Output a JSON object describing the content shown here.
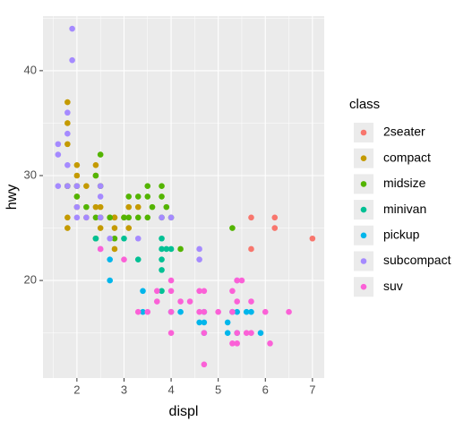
{
  "chart_data": {
    "type": "scatter",
    "x_label": "displ",
    "y_label": "hwy",
    "legend_title": "class",
    "xlim": [
      1.28,
      7.25
    ],
    "ylim": [
      10.7,
      45.2
    ],
    "xticks": [
      2,
      3,
      4,
      5,
      6,
      7
    ],
    "yticks": [
      20,
      30,
      40
    ],
    "grid": true,
    "legend": "right",
    "series": [
      {
        "name": "2seater",
        "color": "#F8766D",
        "x": [
          5.7,
          5.7,
          6.2,
          6.2,
          7.0
        ],
        "values": [
          26,
          23,
          26,
          25,
          24
        ]
      },
      {
        "name": "compact",
        "color": "#C49A00",
        "x": [
          1.8,
          1.8,
          2.0,
          2.0,
          2.8,
          2.8,
          3.1,
          1.8,
          1.8,
          2.0,
          2.0,
          2.8,
          3.1,
          2.2,
          2.4,
          3.0,
          3.3,
          1.8,
          1.8,
          1.8,
          2.4,
          2.5,
          2.5,
          2.2,
          2.4,
          2.5,
          2.7,
          2.8,
          2.0,
          2.5
        ],
        "values": [
          29,
          29,
          31,
          30,
          26,
          26,
          27,
          26,
          25,
          28,
          27,
          25,
          25,
          26,
          27,
          26,
          27,
          37,
          35,
          33,
          31,
          29,
          27,
          29,
          30,
          26,
          26,
          23,
          29,
          25
        ]
      },
      {
        "name": "midsize",
        "color": "#53B400",
        "x": [
          2.5,
          2.4,
          2.5,
          3.0,
          3.3,
          3.5,
          3.8,
          3.6,
          3.5,
          3.1,
          3.8,
          3.9,
          4.0,
          3.3,
          2.4,
          2.2,
          1.8,
          2.0,
          2.0,
          2.8,
          2.7,
          3.5,
          3.8,
          4.2,
          5.3,
          3.1,
          2.5,
          2.4
        ],
        "values": [
          32,
          30,
          29,
          26,
          28,
          29,
          26,
          27,
          26,
          26,
          29,
          27,
          26,
          26,
          26,
          27,
          29,
          28,
          29,
          24,
          26,
          28,
          28,
          23,
          25,
          28,
          26,
          24
        ]
      },
      {
        "name": "minivan",
        "color": "#00C094",
        "x": [
          2.4,
          3.0,
          3.3,
          3.8,
          3.8,
          3.8,
          3.8,
          4.0,
          3.8,
          3.9
        ],
        "values": [
          24,
          24,
          22,
          22,
          21,
          23,
          19,
          23,
          24,
          23
        ]
      },
      {
        "name": "pickup",
        "color": "#00B6EB",
        "x": [
          2.7,
          2.7,
          3.4,
          3.4,
          4.0,
          4.2,
          4.7,
          4.7,
          5.2,
          5.2,
          5.7,
          5.9,
          5.4,
          5.4,
          4.6,
          5.3,
          4.7,
          5.6
        ],
        "values": [
          20,
          22,
          17,
          19,
          17,
          17,
          16,
          17,
          16,
          15,
          17,
          15,
          17,
          15,
          16,
          17,
          15,
          17
        ]
      },
      {
        "name": "subcompact",
        "color": "#A58AFF",
        "x": [
          1.9,
          1.9,
          1.8,
          1.8,
          1.6,
          1.6,
          1.6,
          1.8,
          2.0,
          2.0,
          2.2,
          2.5,
          2.5,
          2.5,
          2.7,
          2.5,
          3.8,
          4.0,
          4.6,
          4.6,
          5.4,
          3.3,
          2.0,
          1.8
        ],
        "values": [
          44,
          41,
          36,
          34,
          33,
          32,
          29,
          29,
          27,
          26,
          26,
          26,
          28,
          29,
          24,
          23,
          26,
          26,
          23,
          22,
          20,
          24,
          29,
          31
        ]
      },
      {
        "name": "suv",
        "color": "#FB61D7",
        "x": [
          2.5,
          3.0,
          3.3,
          3.7,
          3.7,
          4.0,
          4.0,
          4.0,
          4.0,
          4.2,
          4.4,
          4.6,
          4.6,
          4.7,
          4.7,
          4.7,
          4.7,
          5.0,
          5.3,
          5.3,
          5.4,
          5.4,
          5.4,
          5.4,
          5.7,
          5.6,
          6.0,
          6.1,
          6.5,
          5.5,
          5.3,
          5.7,
          3.5
        ],
        "values": [
          23,
          22,
          17,
          19,
          18,
          19,
          20,
          17,
          15,
          18,
          18,
          17,
          19,
          19,
          17,
          12,
          15,
          17,
          19,
          17,
          20,
          18,
          15,
          14,
          18,
          15,
          17,
          14,
          17,
          20,
          14,
          15,
          17
        ]
      }
    ]
  }
}
